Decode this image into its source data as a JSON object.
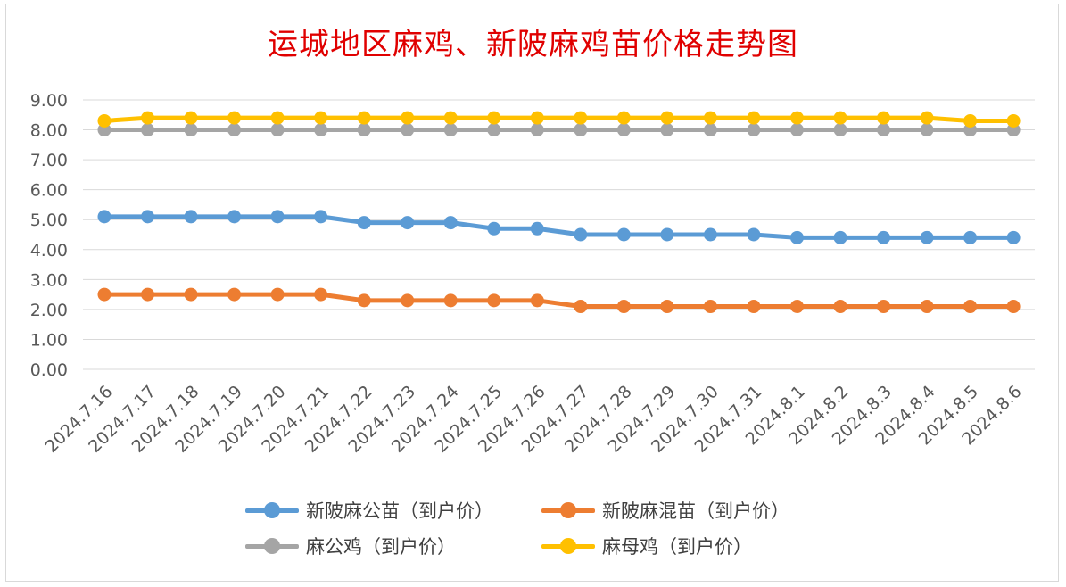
{
  "chart_data": {
    "type": "line",
    "title": "运城地区麻鸡、新陂麻鸡苗价格走势图",
    "categories": [
      "2024.7.16",
      "2024.7.17",
      "2024.7.18",
      "2024.7.19",
      "2024.7.20",
      "2024.7.21",
      "2024.7.22",
      "2024.7.23",
      "2024.7.24",
      "2024.7.25",
      "2024.7.26",
      "2024.7.27",
      "2024.7.28",
      "2024.7.29",
      "2024.7.30",
      "2024.7.31",
      "2024.8.1",
      "2024.8.2",
      "2024.8.3",
      "2024.8.4",
      "2024.8.5",
      "2024.8.6"
    ],
    "yticks": [
      "0.00",
      "1.00",
      "2.00",
      "3.00",
      "4.00",
      "5.00",
      "6.00",
      "7.00",
      "8.00",
      "9.00"
    ],
    "ylim": [
      0,
      9
    ],
    "grid": true,
    "legend_position": "bottom",
    "series": [
      {
        "name": "新陂麻公苗（到户价）",
        "color": "#5b9bd5",
        "values": [
          5.1,
          5.1,
          5.1,
          5.1,
          5.1,
          5.1,
          4.9,
          4.9,
          4.9,
          4.7,
          4.7,
          4.5,
          4.5,
          4.5,
          4.5,
          4.5,
          4.4,
          4.4,
          4.4,
          4.4,
          4.4,
          4.4
        ]
      },
      {
        "name": "新陂麻混苗（到户价）",
        "color": "#ed7d31",
        "values": [
          2.5,
          2.5,
          2.5,
          2.5,
          2.5,
          2.5,
          2.3,
          2.3,
          2.3,
          2.3,
          2.3,
          2.1,
          2.1,
          2.1,
          2.1,
          2.1,
          2.1,
          2.1,
          2.1,
          2.1,
          2.1,
          2.1
        ]
      },
      {
        "name": "麻公鸡（到户价）",
        "color": "#a5a5a5",
        "values": [
          8,
          8,
          8,
          8,
          8,
          8,
          8,
          8,
          8,
          8,
          8,
          8,
          8,
          8,
          8,
          8,
          8,
          8,
          8,
          8,
          8,
          8
        ]
      },
      {
        "name": "麻母鸡（到户价）",
        "color": "#ffc000",
        "values": [
          8.3,
          8.4,
          8.4,
          8.4,
          8.4,
          8.4,
          8.4,
          8.4,
          8.4,
          8.4,
          8.4,
          8.4,
          8.4,
          8.4,
          8.4,
          8.4,
          8.4,
          8.4,
          8.4,
          8.4,
          8.3,
          8.3
        ]
      }
    ]
  }
}
